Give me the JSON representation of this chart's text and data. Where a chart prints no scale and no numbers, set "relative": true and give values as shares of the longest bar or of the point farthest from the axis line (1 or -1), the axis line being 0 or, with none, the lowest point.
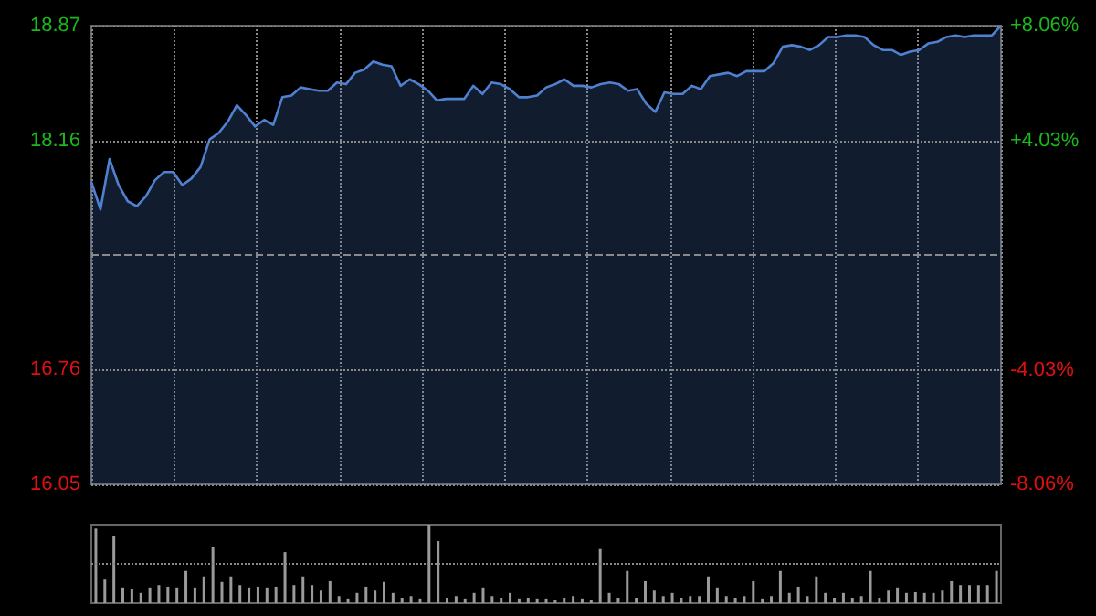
{
  "chart_data": [
    {
      "type": "area",
      "categories": [
        null,
        null,
        null,
        null,
        null,
        null,
        null,
        null,
        null,
        null,
        null,
        null,
        null,
        null,
        null,
        null,
        null,
        null,
        null,
        null,
        null,
        null,
        null,
        null,
        null,
        null,
        null,
        null,
        null,
        null,
        null,
        null,
        null,
        null,
        null,
        null,
        null,
        null,
        null,
        null,
        null,
        null,
        null,
        null,
        null,
        null,
        null,
        null,
        null,
        null,
        null,
        null,
        null,
        null,
        null,
        null,
        null,
        null,
        null,
        null,
        null,
        null,
        null,
        null,
        null,
        null,
        null,
        null,
        null,
        null,
        null,
        null,
        null,
        null,
        null,
        null,
        null,
        null,
        null,
        null,
        null,
        null,
        null,
        null,
        null,
        null,
        null,
        null,
        null,
        null,
        null,
        null,
        null,
        null,
        null,
        null,
        null,
        null,
        null,
        null,
        null
      ],
      "values": [
        17.91,
        17.74,
        18.05,
        17.89,
        17.79,
        17.76,
        17.82,
        17.92,
        17.97,
        17.97,
        17.89,
        17.93,
        18.0,
        18.17,
        18.21,
        18.28,
        18.38,
        18.32,
        18.25,
        18.29,
        18.26,
        18.43,
        18.44,
        18.49,
        18.48,
        18.47,
        18.47,
        18.52,
        18.51,
        18.58,
        18.6,
        18.65,
        18.63,
        18.62,
        18.5,
        18.54,
        18.51,
        18.47,
        18.41,
        18.42,
        18.42,
        18.42,
        18.5,
        18.45,
        18.52,
        18.51,
        18.48,
        18.43,
        18.43,
        18.44,
        18.49,
        18.51,
        18.54,
        18.5,
        18.5,
        18.49,
        18.51,
        18.52,
        18.51,
        18.47,
        18.48,
        18.39,
        18.34,
        18.46,
        18.45,
        18.45,
        18.5,
        18.48,
        18.56,
        18.57,
        18.58,
        18.56,
        18.59,
        18.59,
        18.59,
        18.64,
        18.74,
        18.75,
        18.74,
        18.72,
        18.75,
        18.8,
        18.8,
        18.81,
        18.81,
        18.8,
        18.75,
        18.72,
        18.72,
        18.69,
        18.71,
        18.72,
        18.76,
        18.77,
        18.8,
        18.81,
        18.8,
        18.81,
        18.81,
        18.81,
        18.87
      ],
      "color": "#4f81d0",
      "ylim": [
        16.05,
        18.87
      ],
      "yticks": [
        16.05,
        16.76,
        18.16,
        18.87
      ],
      "y2lim": [
        -8.06,
        8.06
      ],
      "y2ticks": [
        {
          "value": -8.06,
          "label": "-8.06%"
        },
        {
          "value": -4.03,
          "label": "-4.03%"
        },
        {
          "value": 4.03,
          "label": "+4.03%"
        },
        {
          "value": 8.06,
          "label": "+8.06%"
        }
      ],
      "ref_lines": [
        {
          "axis": "y",
          "value": 17.46,
          "line_style": "dashed"
        }
      ],
      "grid": true,
      "tick_labels": "y"
    },
    {
      "type": "bar",
      "relative": true,
      "color": "#9a9a9a",
      "categories": [
        null,
        null,
        null,
        null,
        null,
        null,
        null,
        null,
        null,
        null,
        null,
        null,
        null,
        null,
        null,
        null,
        null,
        null,
        null,
        null,
        null,
        null,
        null,
        null,
        null,
        null,
        null,
        null,
        null,
        null,
        null,
        null,
        null,
        null,
        null,
        null,
        null,
        null,
        null,
        null,
        null,
        null,
        null,
        null,
        null,
        null,
        null,
        null,
        null,
        null,
        null,
        null,
        null,
        null,
        null,
        null,
        null,
        null,
        null,
        null,
        null,
        null,
        null,
        null,
        null,
        null,
        null,
        null,
        null,
        null,
        null,
        null,
        null,
        null,
        null,
        null,
        null,
        null,
        null,
        null,
        null,
        null,
        null,
        null,
        null,
        null,
        null,
        null,
        null,
        null,
        null,
        null,
        null,
        null,
        null,
        null,
        null,
        null,
        null,
        null,
        null
      ],
      "values": [
        0.95,
        0.3,
        0.86,
        0.2,
        0.18,
        0.13,
        0.2,
        0.23,
        0.21,
        0.2,
        0.41,
        0.2,
        0.34,
        0.72,
        0.27,
        0.34,
        0.23,
        0.2,
        0.21,
        0.2,
        0.21,
        0.65,
        0.23,
        0.34,
        0.23,
        0.16,
        0.28,
        0.09,
        0.06,
        0.13,
        0.21,
        0.16,
        0.27,
        0.13,
        0.07,
        0.09,
        0.06,
        1,
        0.79,
        0.07,
        0.09,
        0.06,
        0.13,
        0.2,
        0.09,
        0.07,
        0.13,
        0.06,
        0.07,
        0.06,
        0.06,
        0.04,
        0.07,
        0.09,
        0.06,
        0.04,
        0.69,
        0.13,
        0.07,
        0.41,
        0.07,
        0.28,
        0.16,
        0.09,
        0.13,
        0.07,
        0.09,
        0.09,
        0.34,
        0.2,
        0.09,
        0.07,
        0.09,
        0.28,
        0.06,
        0.09,
        0.41,
        0.13,
        0.21,
        0.09,
        0.34,
        0.13,
        0.07,
        0.13,
        0.07,
        0.09,
        0.41,
        0.07,
        0.16,
        0.2,
        0.13,
        0.14,
        0.13,
        0.13,
        0.16,
        0.28,
        0.23,
        0.23,
        0.23,
        0.23,
        0.41
      ],
      "ref_lines": [
        {
          "axis": "y",
          "value": 0.5,
          "line_style": "dotted"
        }
      ],
      "tick_labels": false
    }
  ]
}
